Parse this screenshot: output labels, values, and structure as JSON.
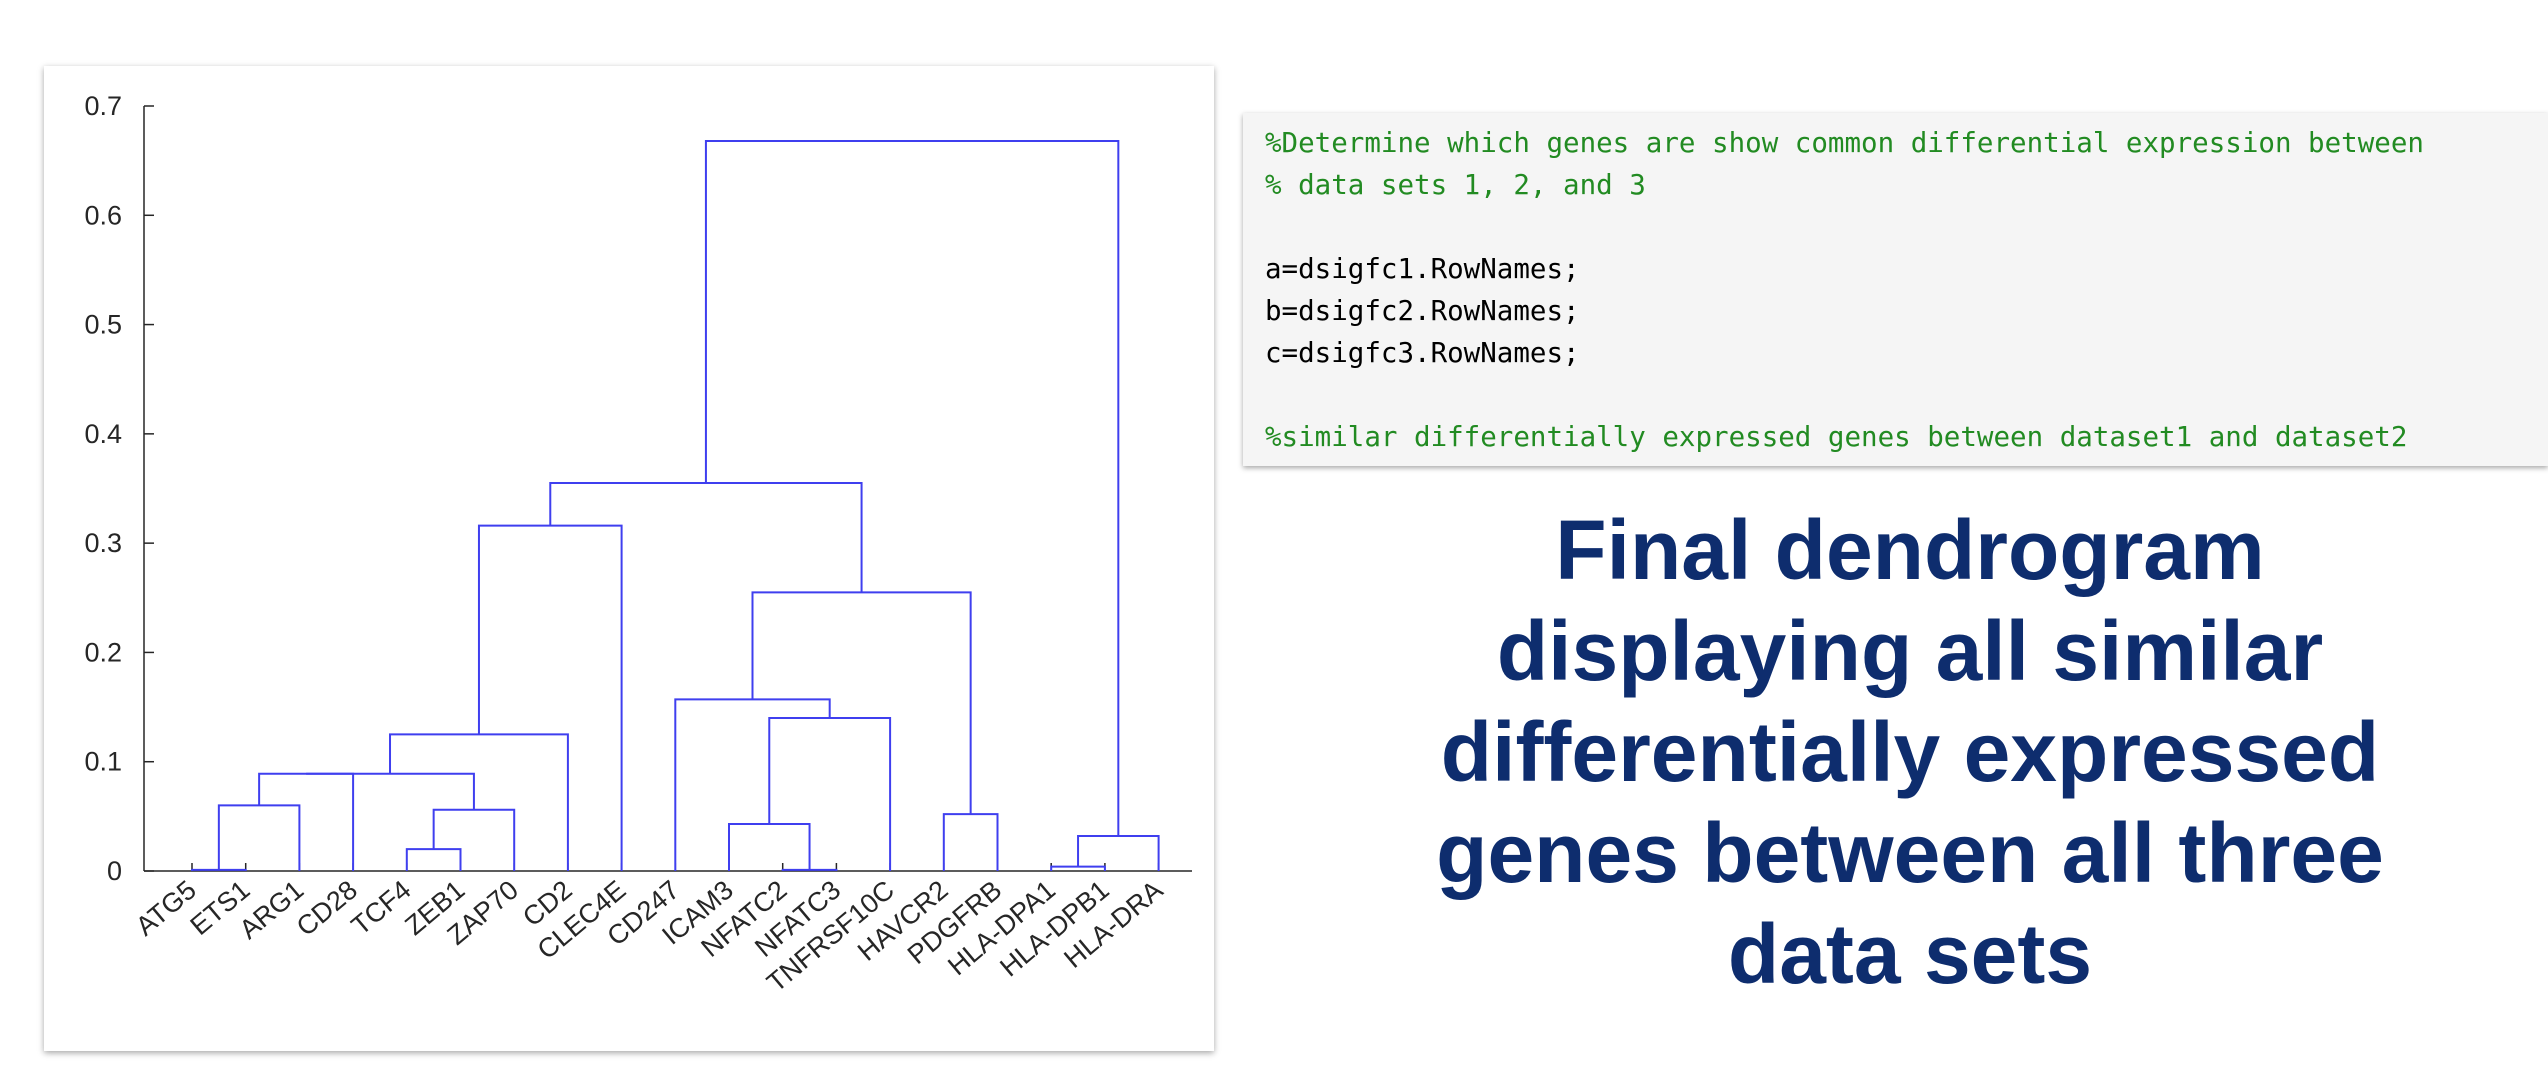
{
  "code": {
    "lines": [
      {
        "text": "%Determine which genes are show common differential expression between",
        "kind": "comment"
      },
      {
        "text": "% data sets 1, 2, and 3",
        "kind": "comment"
      },
      {
        "text": "",
        "kind": "blank"
      },
      {
        "text": "a=dsigfc1.RowNames;",
        "kind": "code"
      },
      {
        "text": "b=dsigfc2.RowNames;",
        "kind": "code"
      },
      {
        "text": "c=dsigfc3.RowNames;",
        "kind": "code"
      },
      {
        "text": "",
        "kind": "blank"
      },
      {
        "text": "%similar differentially expressed genes between dataset1 and dataset2",
        "kind": "comment"
      }
    ],
    "comment_color": "#228b22",
    "code_color": "#000000"
  },
  "heading": {
    "lines": [
      "Final dendrogram",
      "displaying all similar",
      "differentially expressed",
      "genes between all three",
      "data sets"
    ],
    "color": "#0e2d6e"
  },
  "chart_data": {
    "type": "dendrogram",
    "line_color": "#3f3fef",
    "ylim": [
      0,
      0.7
    ],
    "yticks": [
      "0",
      "0.1",
      "0.2",
      "0.3",
      "0.4",
      "0.5",
      "0.6",
      "0.7"
    ],
    "leaves": [
      "ATG5",
      "ETS1",
      "ARG1",
      "CD28",
      "TCF4",
      "ZEB1",
      "ZAP70",
      "CD2",
      "CLEC4E",
      "CD247",
      "ICAM3",
      "NFATC2",
      "NFATC3",
      "TNFRSF10C",
      "HAVCR2",
      "PDGFRB",
      "HLA-DPA1",
      "HLA-DPB1",
      "HLA-DRA"
    ],
    "links": [
      {
        "left": 1,
        "right": 2,
        "height": 0.001
      },
      {
        "left": 12,
        "right": 13,
        "height": 0.001
      },
      {
        "left": 17,
        "right": 18,
        "height": 0.004
      },
      {
        "left": 5,
        "right": 6,
        "height": 0.02
      },
      {
        "left": 11,
        "right": "L2",
        "height": 0.043
      },
      {
        "left": "L3",
        "right": 19,
        "height": 0.032
      },
      {
        "left": 15,
        "right": 16,
        "height": 0.052
      },
      {
        "left": "L4",
        "right": 7,
        "height": 0.056
      },
      {
        "left": "L1",
        "right": 3,
        "height": 0.06
      },
      {
        "left": "L9",
        "right": 4,
        "height": 0.089
      },
      {
        "left": "L10",
        "right": "L8",
        "height": 0.089
      },
      {
        "left": "L11",
        "right": 8,
        "height": 0.125
      },
      {
        "left": "L5",
        "right": 14,
        "height": 0.14
      },
      {
        "left": 10,
        "right": "L13",
        "height": 0.157
      },
      {
        "left": "L14",
        "right": "L7",
        "height": 0.255
      },
      {
        "left": "L12",
        "right": 9,
        "height": 0.316
      },
      {
        "left": "L16",
        "right": "L15",
        "height": 0.355
      },
      {
        "left": "L17",
        "right": "L6",
        "height": 0.668
      }
    ]
  }
}
